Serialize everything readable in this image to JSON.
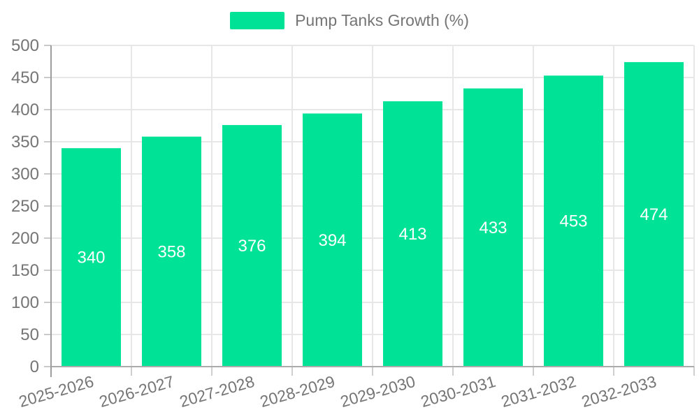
{
  "legend": {
    "label": "Pump Tanks Growth (%)"
  },
  "chart_data": {
    "type": "bar",
    "title": "Pump Tanks Growth (%)",
    "series_name": "Pump Tanks Growth (%)",
    "categories": [
      "2025-2026",
      "2026-2027",
      "2027-2028",
      "2028-2029",
      "2029-2030",
      "2030-2031",
      "2031-2032",
      "2032-2033"
    ],
    "values": [
      340,
      358,
      376,
      394,
      413,
      433,
      453,
      474
    ],
    "xlabel": "",
    "ylabel": "",
    "ylim": [
      0,
      500
    ],
    "yticks": [
      0,
      50,
      100,
      150,
      200,
      250,
      300,
      350,
      400,
      450,
      500
    ],
    "grid": true,
    "legend_position": "top",
    "value_label_position": "inside-center",
    "x_label_rotation_deg": -16
  },
  "colors": {
    "bar": "#00E396",
    "value_label": "#FFFFFF",
    "axis_text": "#757575",
    "legend_text": "#757575",
    "grid_line": "#E7E7E7",
    "y_axis_line": "#9E9E9E",
    "x_axis_line": "#ABABAB",
    "x_tick": "#CFCFCF",
    "y_tick": "#C9C9C9",
    "background": "#FFFFFF"
  }
}
